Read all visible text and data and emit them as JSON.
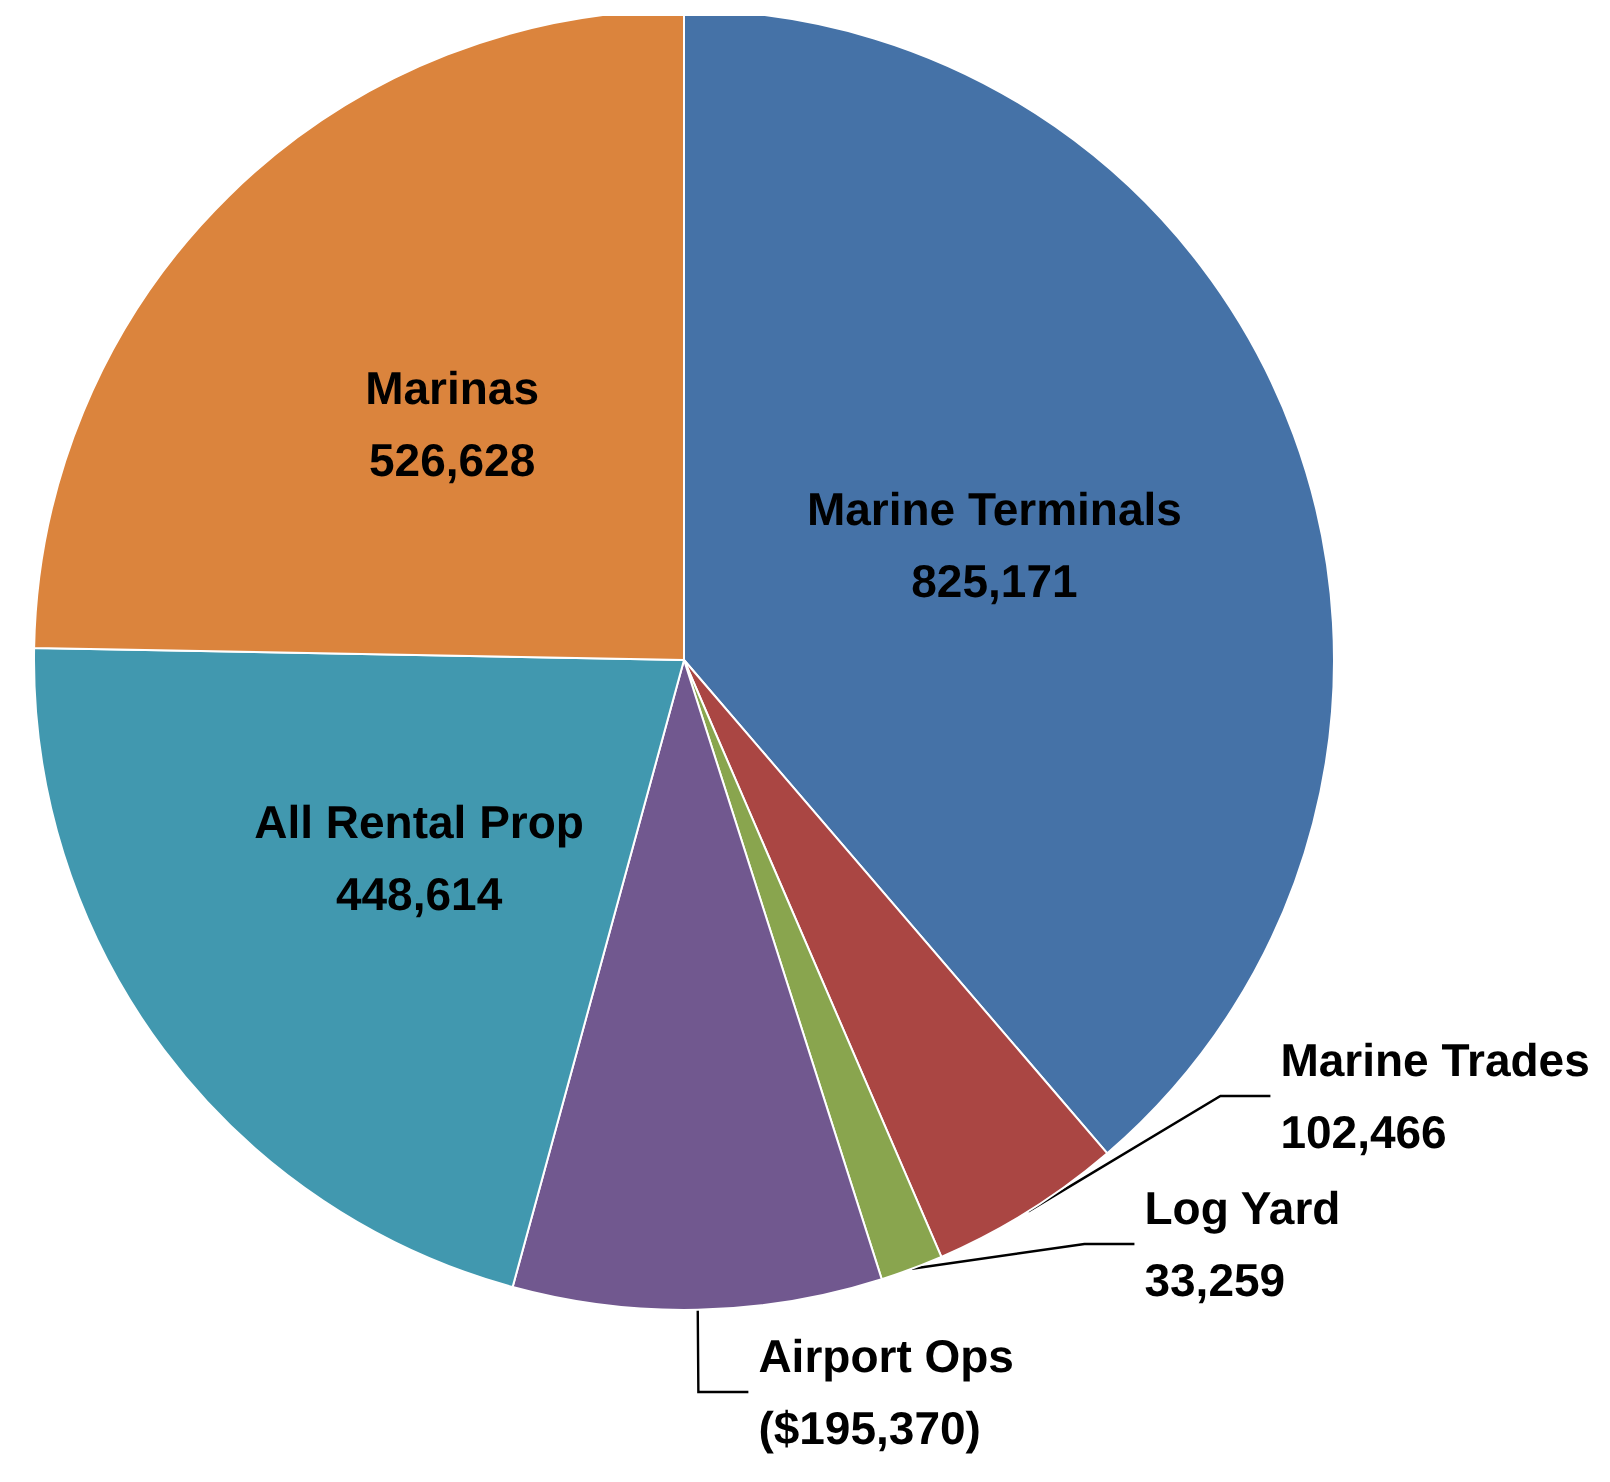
{
  "chart_data": {
    "type": "pie",
    "categories": [
      "Marine Terminals",
      "Marine Trades",
      "Log Yard",
      "Airport Ops",
      "All Rental Prop",
      "Marinas"
    ],
    "values": [
      825171,
      102466,
      33259,
      195370,
      448614,
      526628
    ],
    "colors": [
      "#4572a7",
      "#aa4643",
      "#89a54e",
      "#71588f",
      "#4198af",
      "#db843d"
    ],
    "value_labels": [
      "825,171",
      "102,466",
      "33,259",
      "($195,370)",
      "448,614",
      "526,628"
    ],
    "legend": false
  }
}
